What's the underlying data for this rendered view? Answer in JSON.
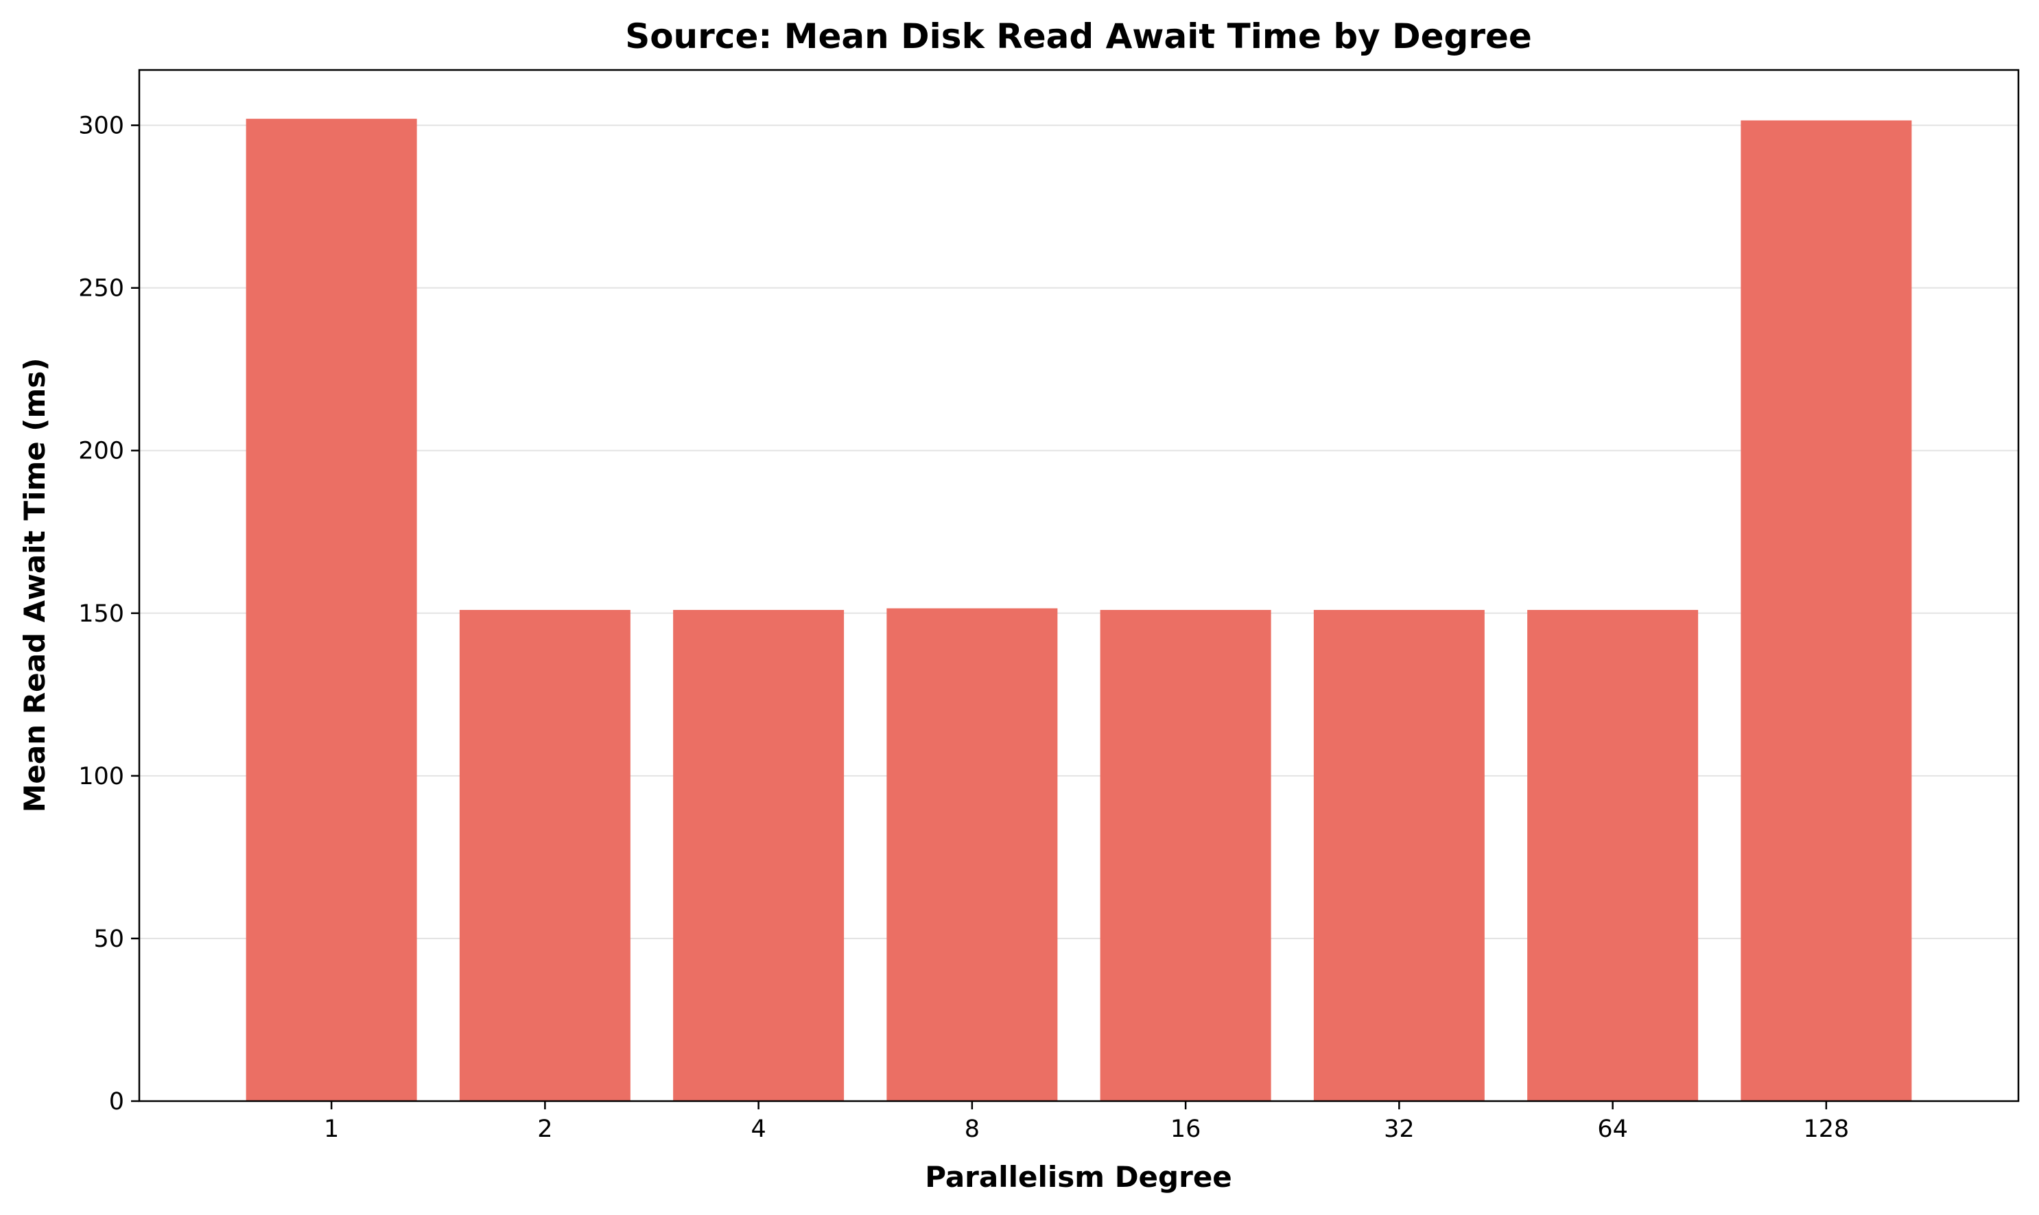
{
  "chart_data": {
    "type": "bar",
    "title": "Source: Mean Disk Read Await Time by Degree",
    "xlabel": "Parallelism Degree",
    "ylabel": "Mean Read Await Time (ms)",
    "categories": [
      "1",
      "2",
      "4",
      "8",
      "16",
      "32",
      "64",
      "128"
    ],
    "values": [
      302,
      151,
      151,
      151.5,
      151,
      151,
      151,
      301.5
    ],
    "ylim": [
      0,
      317
    ],
    "yticks": [
      0,
      50,
      100,
      150,
      200,
      250,
      300
    ],
    "bar_color": "#eb6f64",
    "grid": "y-major",
    "legend": "none"
  }
}
